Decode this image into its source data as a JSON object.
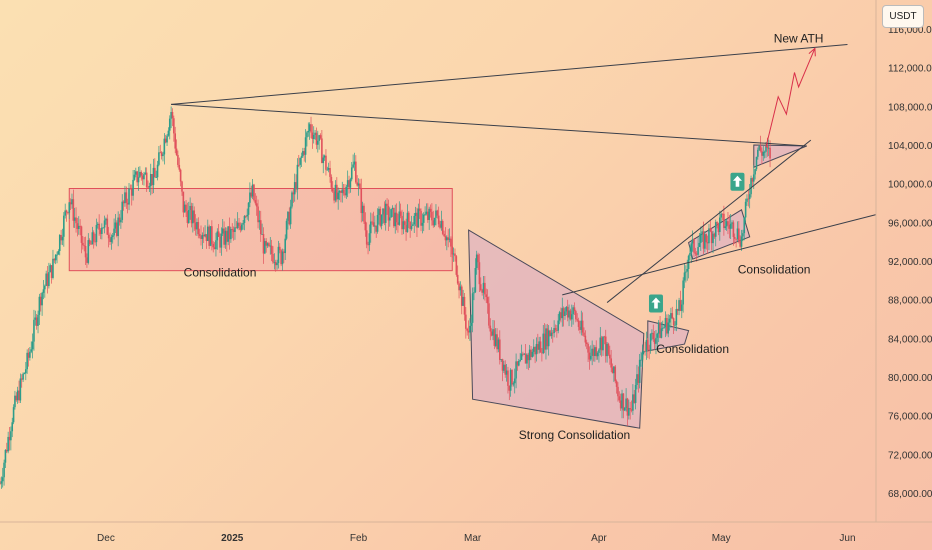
{
  "header": {
    "currency": "USDT"
  },
  "chart_data": {
    "type": "candlestick",
    "currency": "USDT",
    "y_axis": {
      "ticks": [
        "116,000.00",
        "112,000.00",
        "108,000.00",
        "104,000.00",
        "100,000.00",
        "96,000.00",
        "92,000.00",
        "88,000.00",
        "84,000.00",
        "80,000.00",
        "76,000.00",
        "72,000.00",
        "68,000.00"
      ],
      "tick_values": [
        116000,
        112000,
        108000,
        104000,
        100000,
        96000,
        92000,
        88000,
        84000,
        80000,
        76000,
        72000,
        68000
      ],
      "range": [
        65000,
        119000
      ]
    },
    "x_axis": {
      "labels": [
        "Dec",
        "2025",
        "Feb",
        "Mar",
        "Apr",
        "May",
        "Jun"
      ],
      "label_dates": [
        "2024-12-01",
        "2025-01-01",
        "2025-02-01",
        "2025-03-01",
        "2025-04-01",
        "2025-05-01",
        "2025-06-01"
      ],
      "range": [
        "2024-11-05",
        "2025-06-08"
      ]
    },
    "annotations": [
      {
        "text": "Consolidation",
        "x": "2024-12-29",
        "y": 90400
      },
      {
        "text": "Strong Consolidation",
        "x": "2025-03-26",
        "y": 73600
      },
      {
        "text": "Consolidation",
        "x": "2025-04-24",
        "y": 82500
      },
      {
        "text": "Consolidation",
        "x": "2025-05-14",
        "y": 90700
      },
      {
        "text": "New ATH",
        "x": "2025-05-20",
        "y": 114600
      }
    ],
    "zones": [
      {
        "name": "consolidation-range",
        "x": [
          "2024-11-22",
          "2025-02-24"
        ],
        "y": [
          91000,
          99500
        ],
        "color": "#f3aaa8"
      }
    ],
    "shapes": [
      {
        "name": "falling-wedge",
        "points": [
          [
            "2025-02-28",
            95200
          ],
          [
            "2025-04-12",
            84500
          ],
          [
            "2025-04-11",
            74700
          ],
          [
            "2025-03-01",
            77700
          ]
        ],
        "color": "#e0b3c0"
      },
      {
        "name": "flag-april",
        "points": [
          [
            "2025-04-13",
            85800
          ],
          [
            "2025-04-23",
            84800
          ],
          [
            "2025-04-22",
            83400
          ],
          [
            "2025-04-13",
            82700
          ]
        ],
        "color": "#e0b3c0"
      },
      {
        "name": "wedge-may",
        "points": [
          [
            "2025-04-23",
            93900
          ],
          [
            "2025-05-06",
            97300
          ],
          [
            "2025-05-08",
            94500
          ],
          [
            "2025-04-24",
            92200
          ]
        ],
        "color": "#e0b3c0"
      },
      {
        "name": "pennant-top",
        "points": [
          [
            "2025-05-09",
            104000
          ],
          [
            "2025-05-22",
            103900
          ],
          [
            "2025-05-09",
            101700
          ]
        ],
        "color": "#e0b3c0"
      }
    ],
    "trendlines": [
      {
        "name": "ath-projection-line",
        "from": [
          "2024-12-17",
          108200
        ],
        "to": [
          "2025-06-01",
          114400
        ]
      },
      {
        "name": "descending-resistance",
        "from": [
          "2024-12-17",
          108200
        ],
        "to": [
          "2025-05-22",
          103900
        ]
      },
      {
        "name": "lower-support-line",
        "from": [
          "2025-03-23",
          88500
        ],
        "to": [
          "2025-06-08",
          96800
        ]
      },
      {
        "name": "rising-channel-line",
        "from": [
          "2025-04-03",
          87700
        ],
        "to": [
          "2025-05-23",
          104500
        ]
      }
    ],
    "projection": [
      [
        "2025-05-12",
        103800
      ],
      [
        "2025-05-15",
        109000
      ],
      [
        "2025-05-17",
        107200
      ],
      [
        "2025-05-19",
        111500
      ],
      [
        "2025-05-20",
        110000
      ],
      [
        "2025-05-24",
        114000
      ]
    ],
    "markers": [
      {
        "name": "arrow-up-april",
        "x": "2025-04-15",
        "y": 87600
      },
      {
        "name": "arrow-up-may",
        "x": "2025-05-05",
        "y": 100200
      }
    ],
    "price_path": [
      [
        "2024-11-05",
        69000
      ],
      [
        "2024-11-08",
        76000
      ],
      [
        "2024-11-12",
        82000
      ],
      [
        "2024-11-15",
        88500
      ],
      [
        "2024-11-18",
        91500
      ],
      [
        "2024-11-22",
        98500
      ],
      [
        "2024-11-26",
        92500
      ],
      [
        "2024-11-30",
        96000
      ],
      [
        "2024-12-03",
        94500
      ],
      [
        "2024-12-05",
        97500
      ],
      [
        "2024-12-09",
        101000
      ],
      [
        "2024-12-13",
        100500
      ],
      [
        "2024-12-17",
        107500
      ],
      [
        "2024-12-20",
        97500
      ],
      [
        "2024-12-24",
        95500
      ],
      [
        "2024-12-28",
        94000
      ],
      [
        "2025-01-02",
        95000
      ],
      [
        "2025-01-06",
        99000
      ],
      [
        "2025-01-09",
        93000
      ],
      [
        "2025-01-13",
        92500
      ],
      [
        "2025-01-17",
        101000
      ],
      [
        "2025-01-20",
        106000
      ],
      [
        "2025-01-22",
        104500
      ],
      [
        "2025-01-27",
        98000
      ],
      [
        "2025-01-31",
        102000
      ],
      [
        "2025-02-03",
        94500
      ],
      [
        "2025-02-07",
        97000
      ],
      [
        "2025-02-12",
        96000
      ],
      [
        "2025-02-17",
        96500
      ],
      [
        "2025-02-21",
        96500
      ],
      [
        "2025-02-25",
        91500
      ],
      [
        "2025-02-28",
        84000
      ],
      [
        "2025-03-02",
        92000
      ],
      [
        "2025-03-05",
        86000
      ],
      [
        "2025-03-10",
        79500
      ],
      [
        "2025-03-14",
        82000
      ],
      [
        "2025-03-18",
        83500
      ],
      [
        "2025-03-24",
        87000
      ],
      [
        "2025-03-26",
        86500
      ],
      [
        "2025-03-30",
        82300
      ],
      [
        "2025-04-02",
        84000
      ],
      [
        "2025-04-06",
        78000
      ],
      [
        "2025-04-09",
        76500
      ],
      [
        "2025-04-12",
        83200
      ],
      [
        "2025-04-16",
        84800
      ],
      [
        "2025-04-21",
        87000
      ],
      [
        "2025-04-23",
        93000
      ],
      [
        "2025-04-27",
        94200
      ],
      [
        "2025-05-01",
        96000
      ],
      [
        "2025-05-04",
        95500
      ],
      [
        "2025-05-06",
        94300
      ],
      [
        "2025-05-08",
        99800
      ],
      [
        "2025-05-10",
        103500
      ],
      [
        "2025-05-13",
        103000
      ]
    ]
  }
}
